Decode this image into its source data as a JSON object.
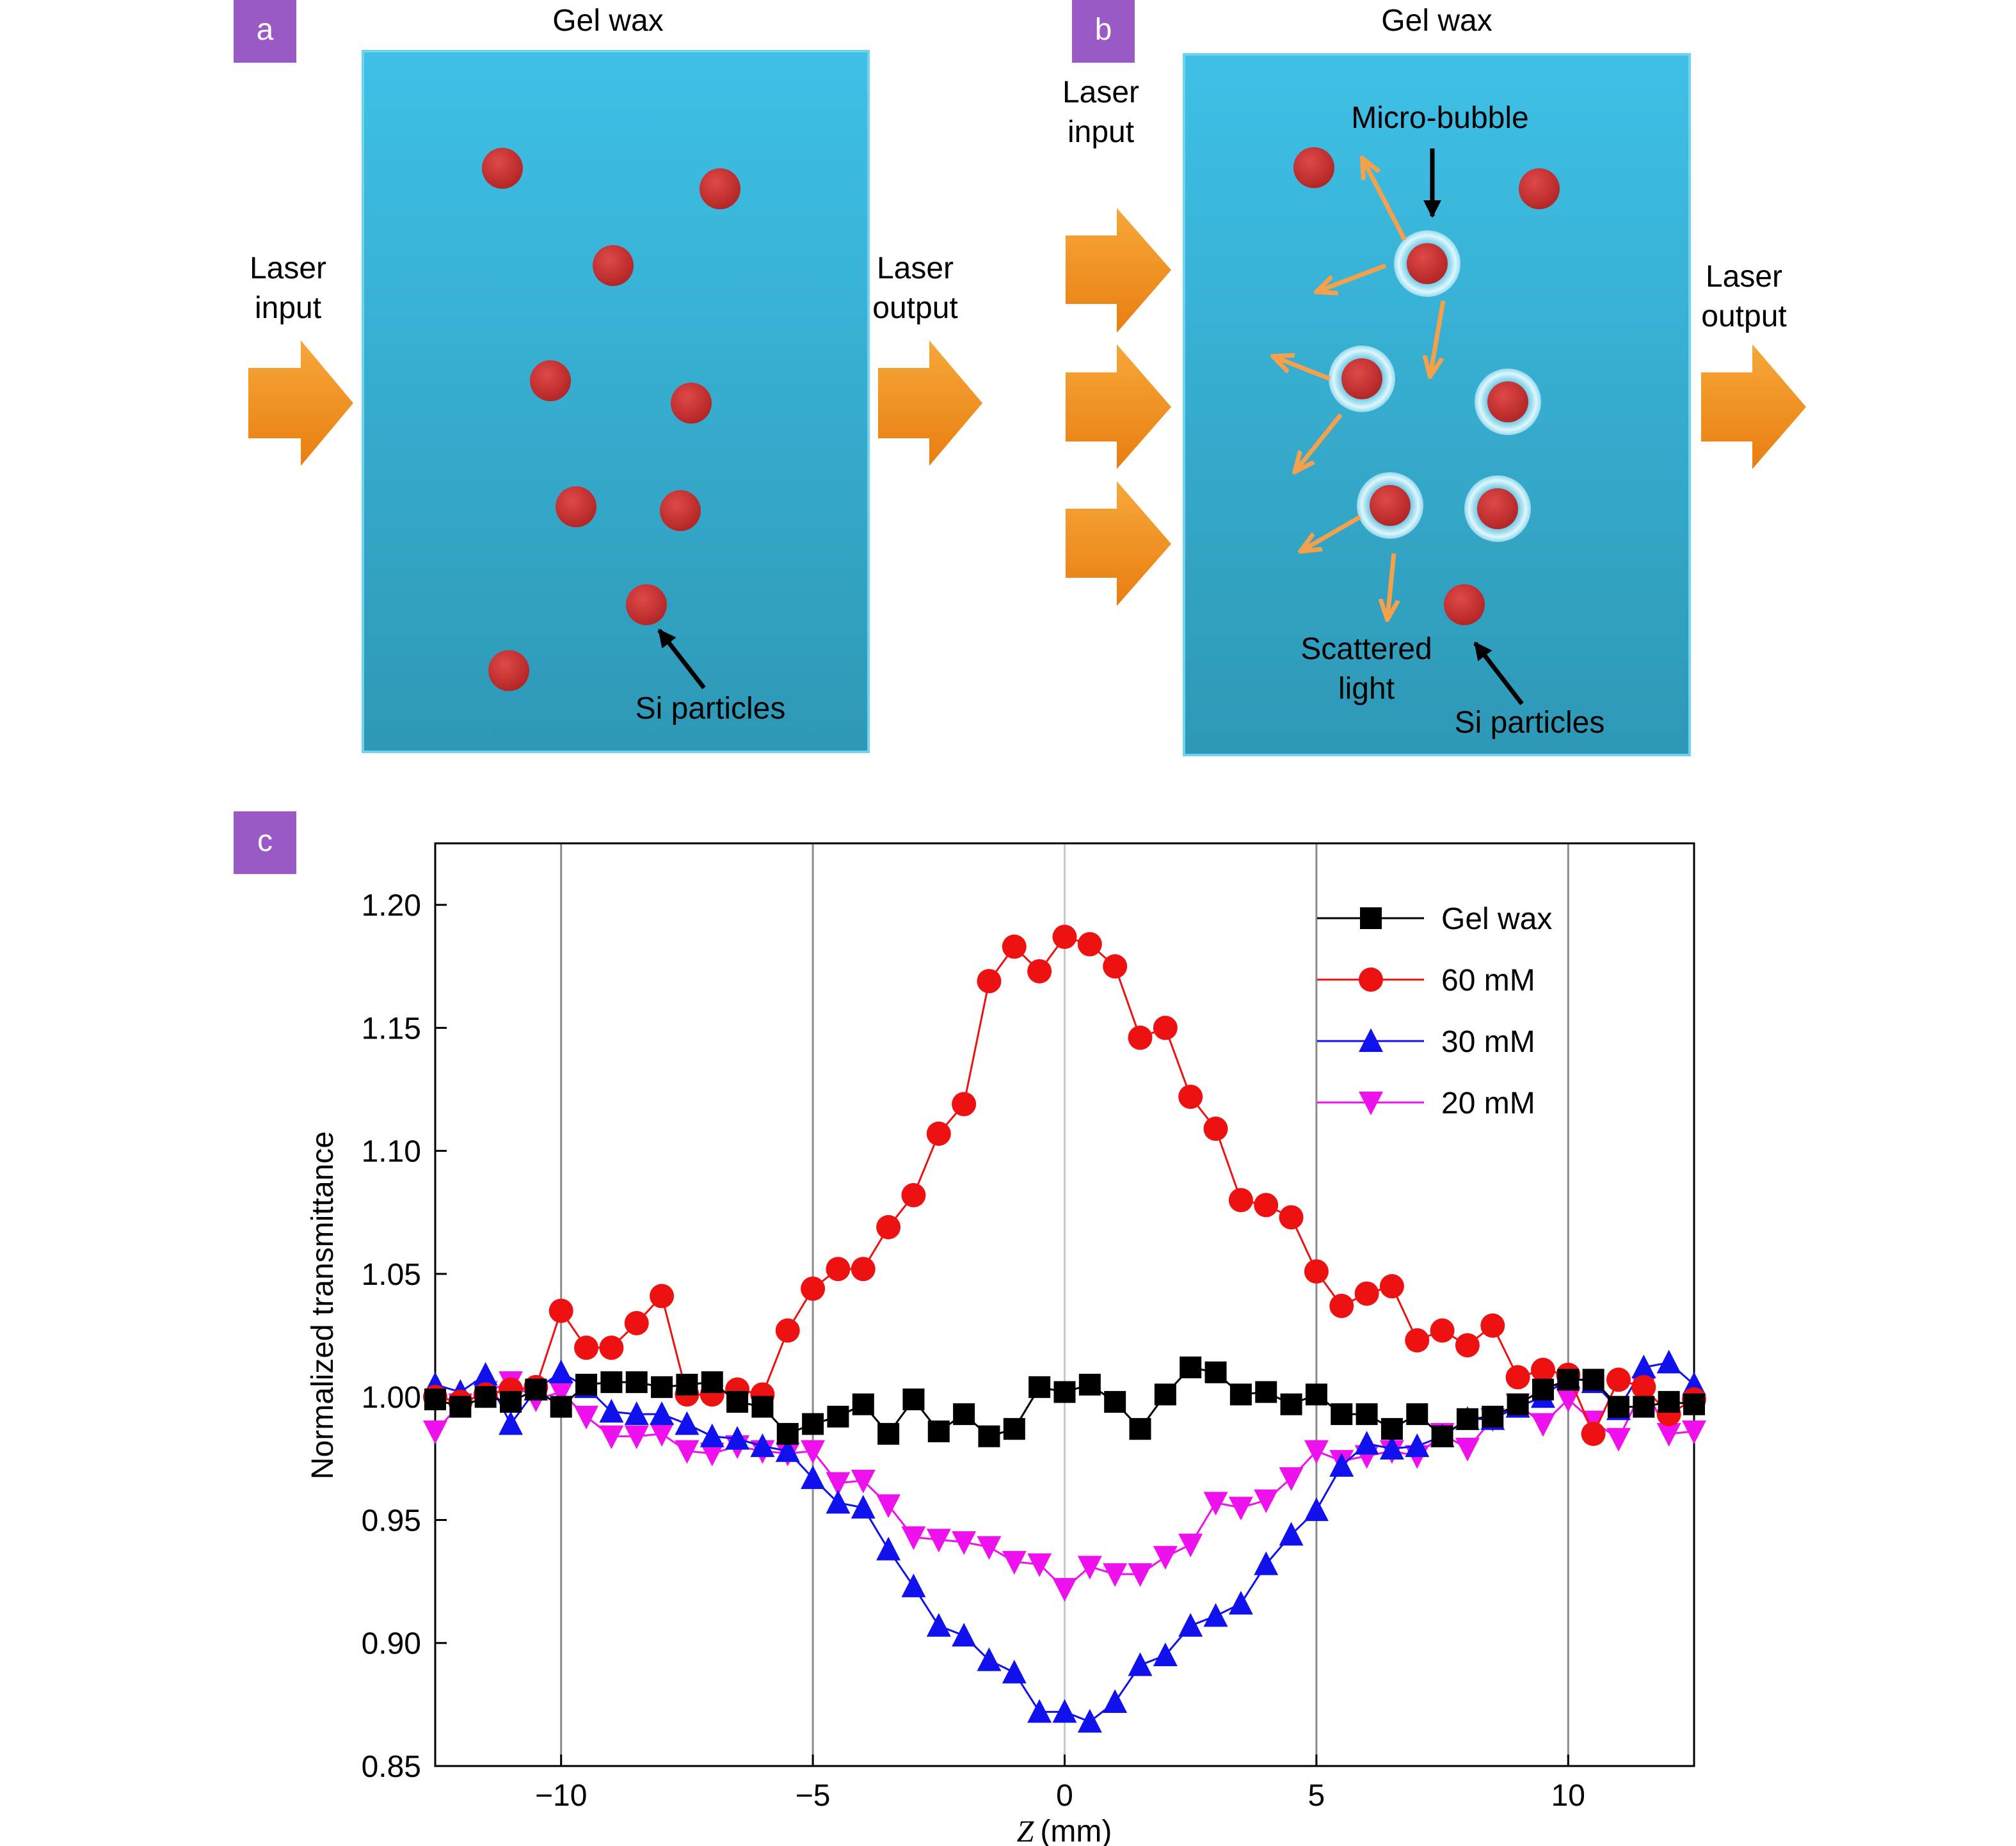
{
  "panels": {
    "a": {
      "label": "a",
      "title": "Gel wax",
      "laser_input": [
        "Laser",
        "input"
      ],
      "laser_output": [
        "Laser",
        "output"
      ],
      "particle_label": "Si particles"
    },
    "b": {
      "label": "b",
      "title": "Gel wax",
      "laser_input": [
        "Laser",
        "input"
      ],
      "laser_output": [
        "Laser",
        "output"
      ],
      "bubble_label": "Micro-bubble",
      "scattered_label": [
        "Scattered",
        "light"
      ],
      "particle_label": "Si particles"
    },
    "c": {
      "label": "c"
    }
  },
  "colors": {
    "panel_tag": "#9b59c6",
    "wax_top": "#3dbde3",
    "wax_bottom": "#2f9cb8",
    "particle": "#cc3030",
    "arrow_orange": "#f0901e",
    "scatter_arrow": "#f5a04a"
  },
  "chart_data": {
    "type": "line",
    "xlabel_var": "Z",
    "xlabel_unit": "(mm)",
    "ylabel": "Normalized transmittance",
    "xlim": [
      -12.5,
      12.5
    ],
    "ylim": [
      0.85,
      1.225
    ],
    "xticks": [
      -10,
      -5,
      0,
      5,
      10
    ],
    "yticks": [
      0.85,
      0.9,
      0.95,
      1.0,
      1.05,
      1.1,
      1.15,
      1.2
    ],
    "xtick_labels": [
      "−10",
      "−5",
      "0",
      "5",
      "10"
    ],
    "ytick_labels": [
      "0.85",
      "0.90",
      "0.95",
      "1.00",
      "1.05",
      "1.10",
      "1.15",
      "1.20"
    ],
    "vertical_grid": true,
    "legend_position": "top-right",
    "series": [
      {
        "name": "Gel wax",
        "color": "#000000",
        "marker": "square",
        "x": [
          -12.5,
          -12,
          -11.5,
          -11,
          -10.5,
          -10,
          -9.5,
          -9,
          -8.5,
          -8,
          -7.5,
          -7,
          -6.5,
          -6,
          -5.5,
          -5,
          -4.5,
          -4,
          -3.5,
          -3,
          -2.5,
          -2,
          -1.5,
          -1,
          -0.5,
          0,
          0.5,
          1,
          1.5,
          2,
          2.5,
          3,
          3.5,
          4,
          4.5,
          5,
          5.5,
          6,
          6.5,
          7,
          7.5,
          8,
          8.5,
          9,
          9.5,
          10,
          10.5,
          11,
          11.5,
          12,
          12.5
        ],
        "y": [
          0.999,
          0.996,
          1.0,
          0.998,
          1.003,
          0.996,
          1.005,
          1.006,
          1.006,
          1.004,
          1.005,
          1.006,
          0.998,
          0.996,
          0.985,
          0.989,
          0.992,
          0.997,
          0.985,
          0.999,
          0.986,
          0.993,
          0.984,
          0.987,
          1.004,
          1.002,
          1.005,
          0.998,
          0.987,
          1.001,
          1.012,
          1.01,
          1.001,
          1.002,
          0.997,
          1.001,
          0.993,
          0.993,
          0.987,
          0.993,
          0.984,
          0.991,
          0.992,
          0.997,
          1.003,
          1.007,
          1.007,
          0.996,
          0.996,
          0.998,
          0.997
        ]
      },
      {
        "name": "60 mM",
        "color": "#ee1111",
        "marker": "circle",
        "x": [
          -12.5,
          -12,
          -11.5,
          -11,
          -10.5,
          -10,
          -9.5,
          -9,
          -8.5,
          -8,
          -7.5,
          -7,
          -6.5,
          -6,
          -5.5,
          -5,
          -4.5,
          -4,
          -3.5,
          -3,
          -2.5,
          -2,
          -1.5,
          -1,
          -0.5,
          0,
          0.5,
          1,
          1.5,
          2,
          2.5,
          3,
          3.5,
          4,
          4.5,
          5,
          5.5,
          6,
          6.5,
          7,
          7.5,
          8,
          8.5,
          9,
          9.5,
          10,
          10.5,
          11,
          11.5,
          12,
          12.5
        ],
        "y": [
          1.0,
          0.998,
          1.001,
          1.003,
          1.004,
          1.035,
          1.02,
          1.02,
          1.03,
          1.041,
          1.001,
          1.001,
          1.003,
          1.001,
          1.027,
          1.044,
          1.052,
          1.052,
          1.069,
          1.082,
          1.107,
          1.119,
          1.169,
          1.183,
          1.173,
          1.187,
          1.184,
          1.175,
          1.146,
          1.15,
          1.122,
          1.109,
          1.08,
          1.078,
          1.073,
          1.051,
          1.037,
          1.042,
          1.045,
          1.023,
          1.027,
          1.021,
          1.029,
          1.008,
          1.011,
          1.009,
          0.985,
          1.007,
          1.004,
          0.993,
          0.999
        ]
      },
      {
        "name": "30 mM",
        "color": "#1111ee",
        "marker": "triangle-up",
        "x": [
          -12.5,
          -12,
          -11.5,
          -11,
          -10.5,
          -10,
          -9.5,
          -9,
          -8.5,
          -8,
          -7.5,
          -7,
          -6.5,
          -6,
          -5.5,
          -5,
          -4.5,
          -4,
          -3.5,
          -3,
          -2.5,
          -2,
          -1.5,
          -1,
          -0.5,
          0,
          0.5,
          1,
          1.5,
          2,
          2.5,
          3,
          3.5,
          4,
          4.5,
          5,
          5.5,
          6,
          6.5,
          7,
          7.5,
          8,
          8.5,
          9,
          9.5,
          10,
          10.5,
          11,
          11.5,
          12,
          12.5
        ],
        "y": [
          1.005,
          1.002,
          1.009,
          0.989,
          1.003,
          1.01,
          1.004,
          0.994,
          0.993,
          0.993,
          0.989,
          0.984,
          0.983,
          0.98,
          0.978,
          0.967,
          0.957,
          0.955,
          0.938,
          0.923,
          0.907,
          0.903,
          0.893,
          0.888,
          0.872,
          0.872,
          0.868,
          0.876,
          0.891,
          0.895,
          0.907,
          0.911,
          0.916,
          0.932,
          0.944,
          0.954,
          0.972,
          0.981,
          0.979,
          0.98,
          0.984,
          0.991,
          0.991,
          0.996,
          1.0,
          1.008,
          1.006,
          0.995,
          1.012,
          1.014,
          1.005
        ]
      },
      {
        "name": "20 mM",
        "color": "#ee11ee",
        "marker": "triangle-down",
        "x": [
          -12.5,
          -12,
          -11.5,
          -11,
          -10.5,
          -10,
          -9.5,
          -9,
          -8.5,
          -8,
          -7.5,
          -7,
          -6.5,
          -6,
          -5.5,
          -5,
          -4.5,
          -4,
          -3.5,
          -3,
          -2.5,
          -2,
          -1.5,
          -1,
          -0.5,
          0,
          0.5,
          1,
          1.5,
          2,
          2.5,
          3,
          3.5,
          4,
          4.5,
          5,
          5.5,
          6,
          6.5,
          7,
          7.5,
          8,
          8.5,
          9,
          9.5,
          10,
          10.5,
          11,
          11.5,
          12,
          12.5
        ],
        "y": [
          0.986,
          0.997,
          1.002,
          1.006,
          0.999,
          1.002,
          0.992,
          0.984,
          0.984,
          0.985,
          0.978,
          0.977,
          0.98,
          0.978,
          0.977,
          0.978,
          0.965,
          0.966,
          0.956,
          0.943,
          0.942,
          0.941,
          0.939,
          0.933,
          0.932,
          0.922,
          0.931,
          0.928,
          0.928,
          0.935,
          0.94,
          0.957,
          0.955,
          0.958,
          0.967,
          0.978,
          0.974,
          0.976,
          0.978,
          0.976,
          0.985,
          0.979,
          0.991,
          0.997,
          0.989,
          0.999,
          0.99,
          0.983,
          1.004,
          0.985,
          0.986
        ]
      }
    ]
  }
}
